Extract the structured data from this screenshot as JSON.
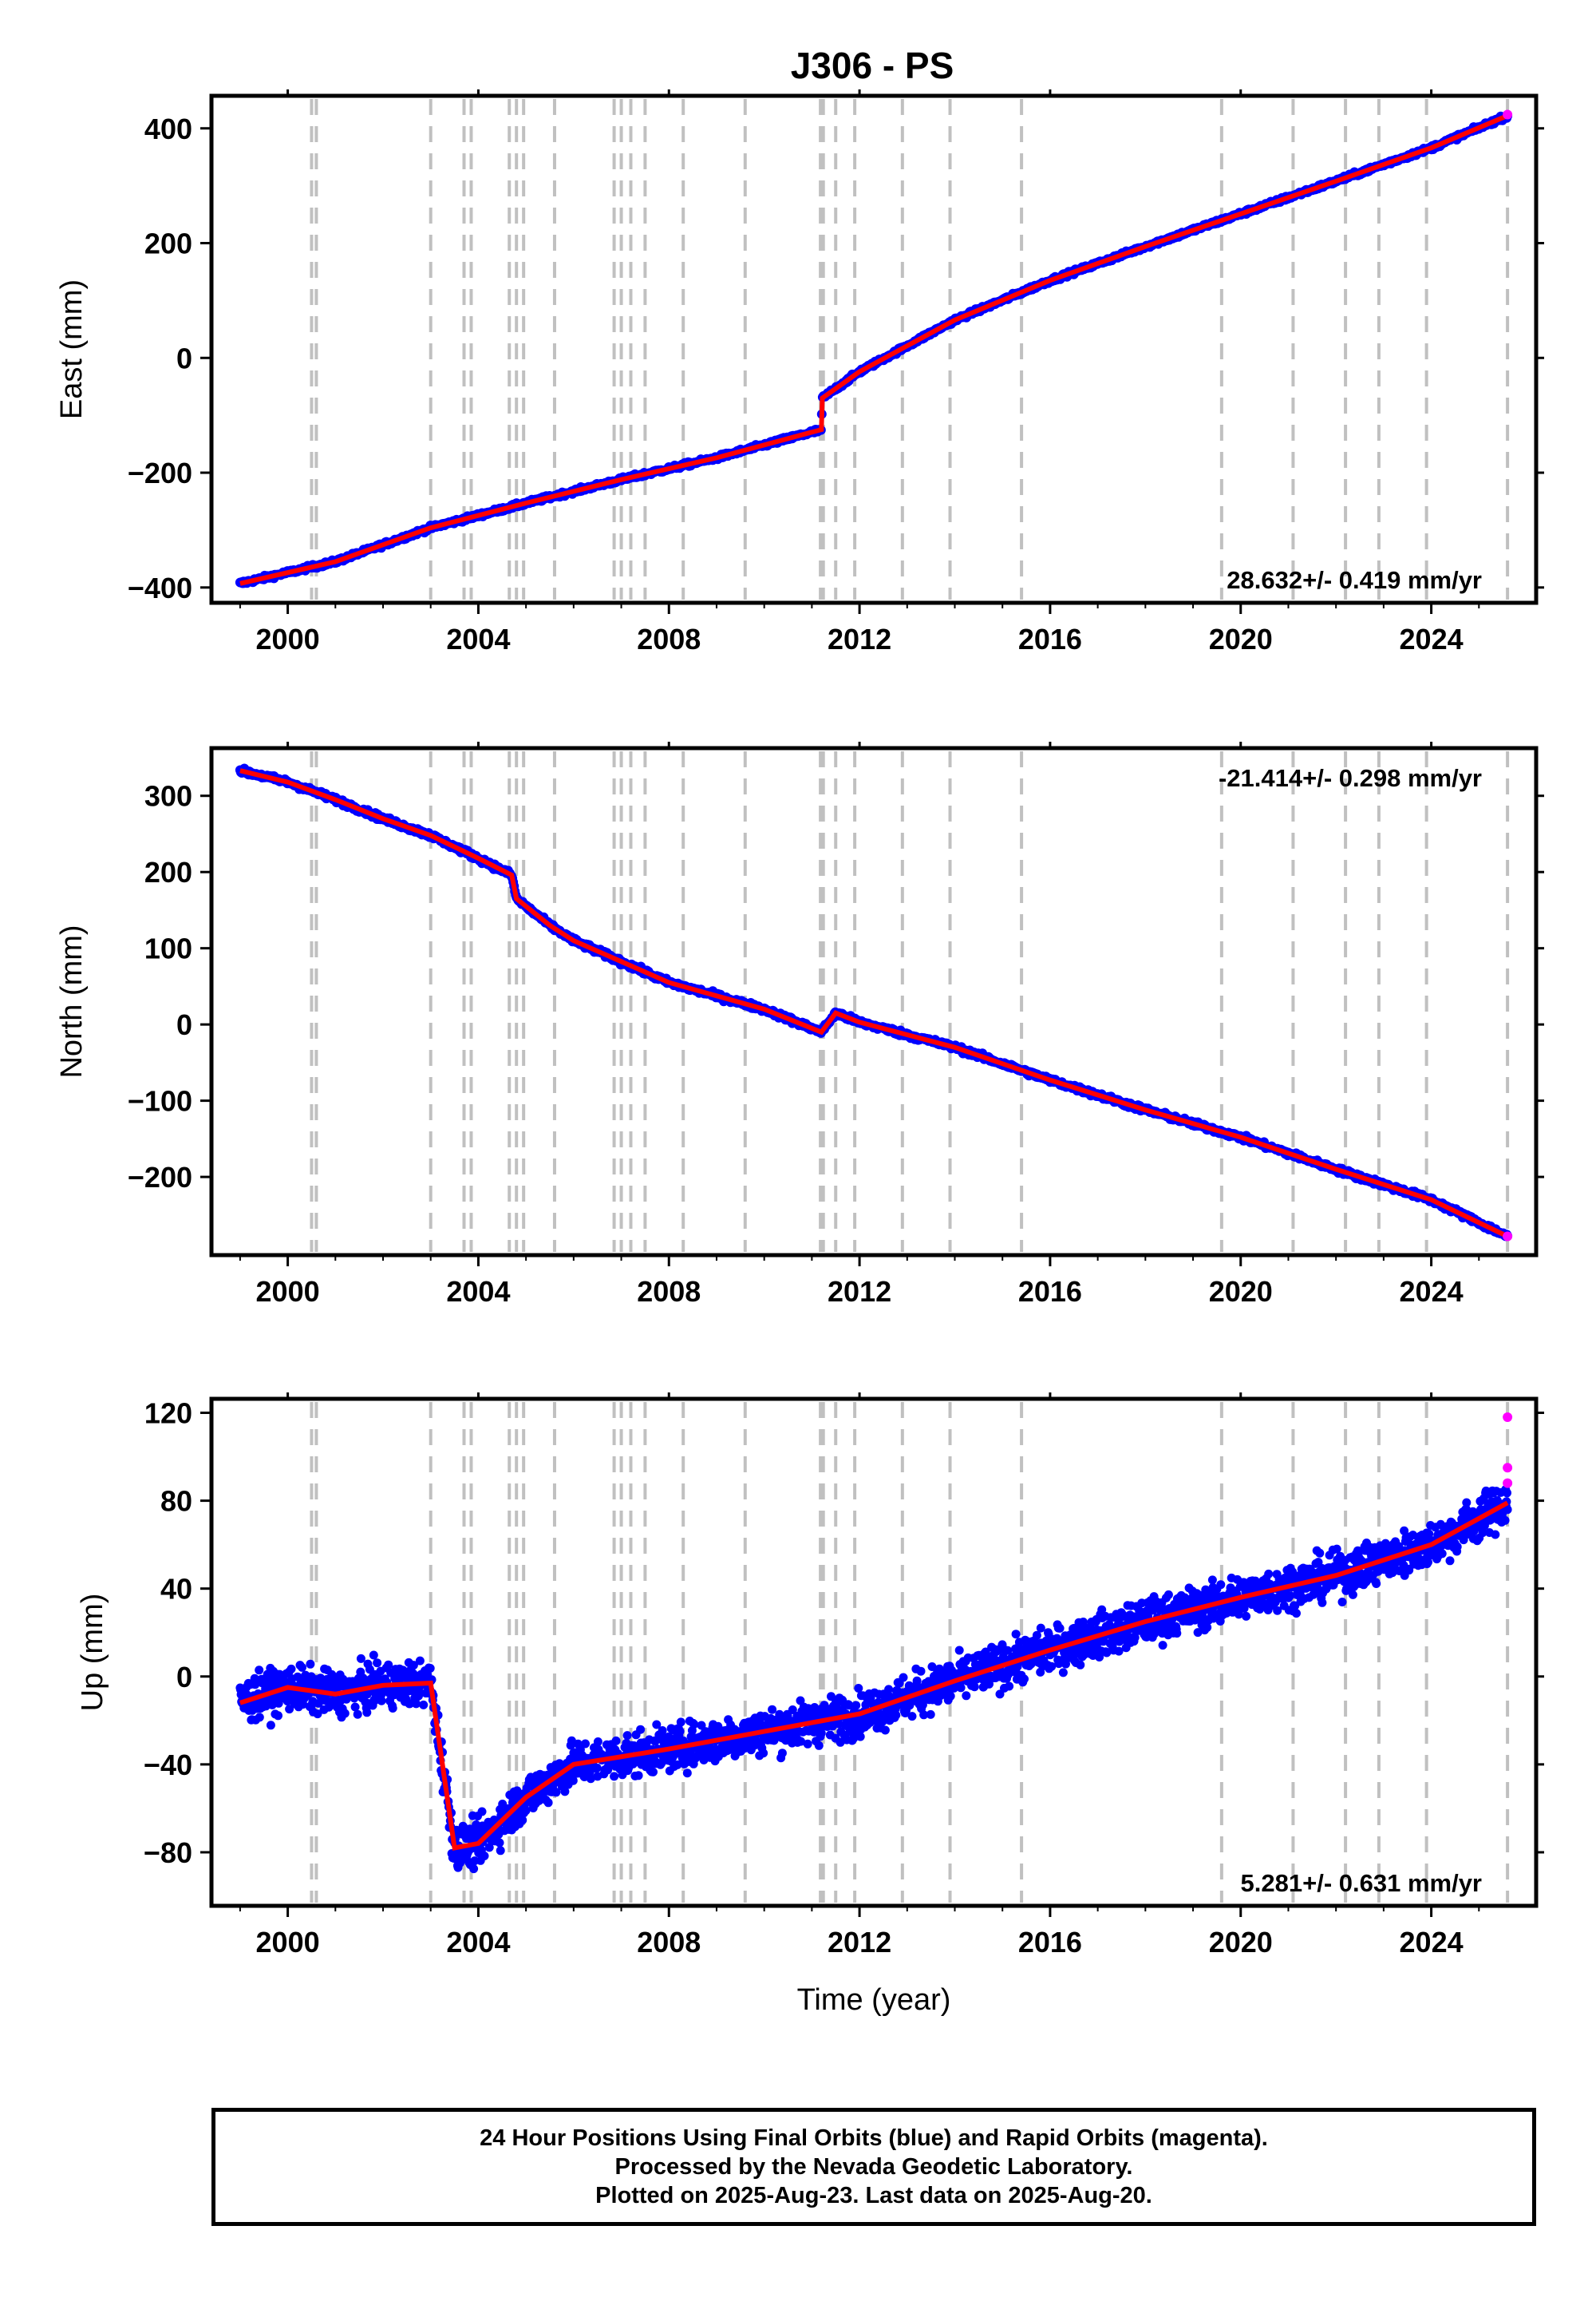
{
  "title": "J306 - PS",
  "footer": {
    "line1": "24 Hour Positions Using Final Orbits (blue) and Rapid Orbits (magenta).",
    "line2": "Processed by the Nevada Geodetic Laboratory.",
    "line3": "Plotted on 2025-Aug-23. Last data on 2025-Aug-20."
  },
  "colors": {
    "final_orbits": "#0000ff",
    "rapid_orbits": "#ff00ff",
    "model": "#ff0000",
    "event_lines": "#c0c0c0"
  },
  "chart_data": [
    {
      "type": "scatter",
      "ylabel": "East (mm)",
      "xlabel": "",
      "xlim": [
        1998.6,
        2026.0
      ],
      "ylim": [
        -410,
        440
      ],
      "x_ticks": [
        "2000",
        "2004",
        "2008",
        "2012",
        "2016",
        "2020",
        "2024"
      ],
      "y_ticks": [
        "−400",
        "−200",
        "0",
        "200",
        "400"
      ],
      "rate_label": "28.632+/- 0.419 mm/yr",
      "rate_position": "bottom-right",
      "grid": false,
      "series": [
        {
          "name": "Final Orbits",
          "color": "#0000ff",
          "x": [
            1999.0,
            2001.0,
            2003.0,
            2005.0,
            2007.0,
            2009.0,
            2011.2,
            2011.22,
            2012.0,
            2014.0,
            2016.0,
            2018.0,
            2020.0,
            2022.0,
            2024.0,
            2025.6
          ],
          "y": [
            -393,
            -355,
            -296,
            -253,
            -212,
            -174,
            -125,
            -70,
            -24,
            66,
            135,
            194,
            251,
            308,
            366,
            422
          ]
        },
        {
          "name": "Rapid Orbits",
          "color": "#ff00ff",
          "x": [
            2025.6
          ],
          "y": [
            424
          ]
        }
      ]
    },
    {
      "type": "scatter",
      "ylabel": "North (mm)",
      "xlabel": "",
      "xlim": [
        1998.6,
        2026.0
      ],
      "ylim": [
        -290,
        350
      ],
      "x_ticks": [
        "2000",
        "2004",
        "2008",
        "2012",
        "2016",
        "2020",
        "2024"
      ],
      "y_ticks": [
        "−200",
        "−100",
        "0",
        "100",
        "200",
        "300"
      ],
      "rate_label": "-21.414+/- 0.298 mm/yr",
      "rate_position": "top-right",
      "grid": false,
      "series": [
        {
          "name": "Final Orbits",
          "color": "#0000ff",
          "x": [
            1999.0,
            2000.0,
            2001.0,
            2002.0,
            2003.0,
            2004.0,
            2004.7,
            2004.8,
            2005.5,
            2006.0,
            2008.0,
            2010.0,
            2011.2,
            2011.5,
            2012.0,
            2014.0,
            2016.0,
            2018.0,
            2020.0,
            2022.0,
            2024.0,
            2025.6
          ],
          "y": [
            333,
            318,
            295,
            270,
            248,
            218,
            196,
            165,
            130,
            110,
            55,
            20,
            -10,
            15,
            3,
            -30,
            -73,
            -112,
            -148,
            -190,
            -230,
            -278
          ]
        },
        {
          "name": "Rapid Orbits",
          "color": "#ff00ff",
          "x": [
            2025.6
          ],
          "y": [
            -278
          ]
        }
      ]
    },
    {
      "type": "scatter",
      "ylabel": "Up (mm)",
      "xlabel": "Time (year)",
      "xlim": [
        1998.6,
        2026.0
      ],
      "ylim": [
        -100,
        122
      ],
      "x_ticks": [
        "2000",
        "2004",
        "2008",
        "2012",
        "2016",
        "2020",
        "2024"
      ],
      "y_ticks": [
        "−80",
        "−40",
        "0",
        "40",
        "80",
        "120"
      ],
      "rate_label": "5.281+/- 0.631 mm/yr",
      "rate_position": "bottom-right",
      "grid": false,
      "series": [
        {
          "name": "Final Orbits",
          "color": "#0000ff",
          "x": [
            1999.0,
            2000.0,
            2001.0,
            2002.0,
            2003.0,
            2003.5,
            2004.0,
            2005.0,
            2006.0,
            2008.0,
            2010.0,
            2012.0,
            2014.0,
            2016.0,
            2018.0,
            2020.0,
            2022.0,
            2024.0,
            2025.6
          ],
          "y": [
            -12,
            -5,
            -8,
            -4,
            -3,
            -78,
            -76,
            -55,
            -40,
            -33,
            -25,
            -17,
            -2,
            12,
            25,
            36,
            46,
            60,
            79
          ]
        },
        {
          "name": "Rapid Orbits",
          "color": "#ff00ff",
          "x": [
            2025.6,
            2025.6,
            2025.6
          ],
          "y": [
            118,
            95,
            88
          ]
        }
      ]
    }
  ]
}
